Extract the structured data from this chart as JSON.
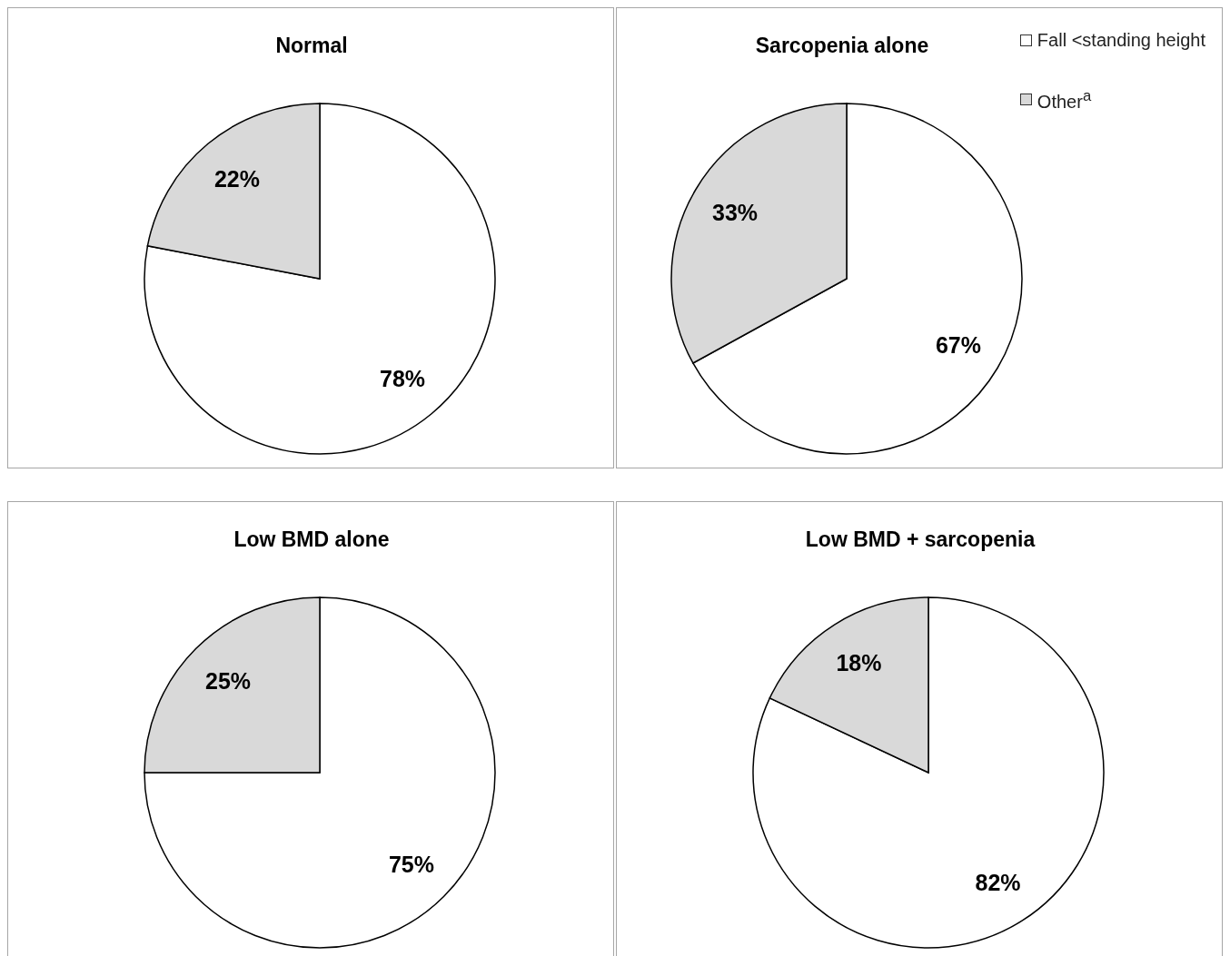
{
  "chart_data": [
    {
      "type": "pie",
      "title": "Normal",
      "categories": [
        null,
        null
      ],
      "values": [
        78,
        22
      ],
      "value_labels": [
        "78%",
        "22%"
      ],
      "colors": [
        "#ffffff",
        "#d9d9d9"
      ],
      "legend": false
    },
    {
      "type": "pie",
      "title": "Sarcopenia alone",
      "categories": [
        "Fall <standing height",
        "Other$^{a}$"
      ],
      "values": [
        67,
        33
      ],
      "value_labels": [
        "67%",
        "33%"
      ],
      "colors": [
        "#ffffff",
        "#d9d9d9"
      ],
      "legend": "top right"
    },
    {
      "type": "pie",
      "title": "Low BMD alone",
      "categories": [
        null,
        null
      ],
      "values": [
        75,
        25
      ],
      "value_labels": [
        "75%",
        "25%"
      ],
      "colors": [
        "#ffffff",
        "#d9d9d9"
      ],
      "legend": false
    },
    {
      "type": "pie",
      "title": "Low BMD + sarcopenia",
      "categories": [
        null,
        null
      ],
      "values": [
        82,
        18
      ],
      "value_labels": [
        "82%",
        "18%"
      ],
      "colors": [
        "#ffffff",
        "#d9d9d9"
      ],
      "legend": false
    }
  ]
}
